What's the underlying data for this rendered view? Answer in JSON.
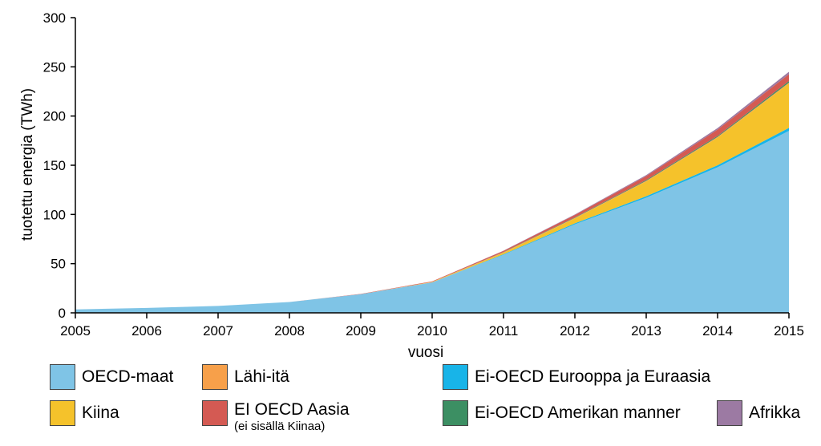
{
  "chart_data": {
    "type": "area",
    "stacked": true,
    "xlabel": "vuosi",
    "ylabel": "tuotettu energia (TWh)",
    "ylim": [
      0,
      300
    ],
    "yticks": [
      "0",
      "50",
      "100",
      "150",
      "200",
      "250",
      "300"
    ],
    "x": [
      "2005",
      "2006",
      "2007",
      "2008",
      "2009",
      "2010",
      "2011",
      "2012",
      "2013",
      "2014",
      "2015"
    ],
    "grid": false,
    "series": [
      {
        "name": "OECD-maat",
        "color": "#7fc4e6",
        "values": [
          3.5,
          5,
          7,
          11,
          19,
          31,
          59,
          90,
          117,
          148,
          185
        ]
      },
      {
        "name": "Ei-OECD Eurooppa ja Euraasia",
        "color": "#18b4e8",
        "values": [
          0,
          0,
          0,
          0,
          0,
          0,
          0.5,
          1,
          1.5,
          2,
          3
        ]
      },
      {
        "name": "Kiina",
        "color": "#f5c22b",
        "values": [
          0,
          0,
          0,
          0,
          0,
          0.3,
          1.5,
          5,
          15,
          28,
          45
        ]
      },
      {
        "name": "Lähi-itä",
        "color": "#f7a04a",
        "values": [
          0,
          0,
          0,
          0,
          0,
          0.2,
          0.5,
          0.5,
          0.7,
          0.8,
          1
        ]
      },
      {
        "name": "Ei-OECD Amerikan manner",
        "color": "#3c8f63",
        "values": [
          0,
          0,
          0,
          0,
          0,
          0,
          0.3,
          0.5,
          0.8,
          1,
          1.5
        ]
      },
      {
        "name": "EI OECD Aasia",
        "color": "#d45a53",
        "values": [
          0,
          0,
          0,
          0,
          0.3,
          0.5,
          1.2,
          2.5,
          4,
          6.5,
          7
        ]
      },
      {
        "name": "Afrikka",
        "color": "#9c7aa3",
        "values": [
          0,
          0,
          0,
          0,
          0,
          0,
          0.2,
          0.5,
          1,
          1.5,
          2.5
        ]
      }
    ]
  },
  "legend": [
    {
      "name": "OECD-maat",
      "color": "#7fc4e6"
    },
    {
      "name": "Lähi-itä",
      "color": "#f7a04a"
    },
    {
      "name": "Ei-OECD Eurooppa ja Euraasia",
      "color": "#18b4e8"
    },
    {
      "name": "Kiina",
      "color": "#f5c22b"
    },
    {
      "name": "EI OECD Aasia",
      "sub": "(ei sisällä Kiinaa)",
      "color": "#d45a53"
    },
    {
      "name": "Ei-OECD Amerikan manner",
      "color": "#3c8f63"
    },
    {
      "name": "Afrikka",
      "color": "#9c7aa3"
    }
  ]
}
